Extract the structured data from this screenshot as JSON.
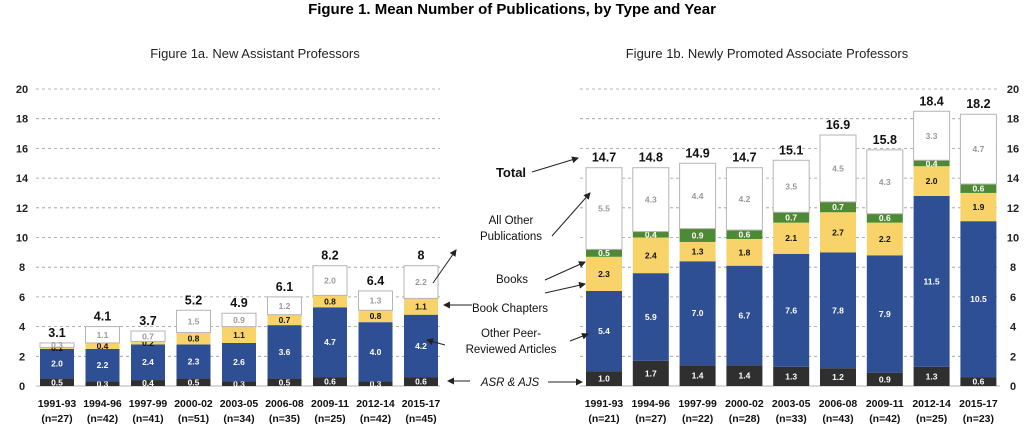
{
  "title": "Figure 1. Mean Number of Publications, by Type and Year",
  "colors": {
    "asr_ajs": "#2f2f2f",
    "peer_reviewed": "#2f4f94",
    "book_chapters": "#f7d36a",
    "books": "#4e8a35",
    "other": "#ffffff",
    "other_stroke": "#b5b5b5",
    "grid": "#9a9a9a"
  },
  "legend": {
    "total": "Total",
    "other": [
      "All Other",
      "Publications"
    ],
    "books": "Books",
    "book_chapters": "Book Chapters",
    "peer_reviewed": [
      "Other Peer-",
      "Reviewed Articles"
    ],
    "asr_ajs": "ASR & AJS"
  },
  "chart_data": [
    {
      "type": "bar",
      "stacked": true,
      "title": "Figure 1a. New Assistant Professors",
      "categories": [
        "1991-93",
        "1994-96",
        "1997-99",
        "2000-02",
        "2003-05",
        "2006-08",
        "2009-11",
        "2012-14",
        "2015-17"
      ],
      "n_labels": [
        "(n=27)",
        "(n=42)",
        "(n=41)",
        "(n=51)",
        "(n=34)",
        "(n=35)",
        "(n=25)",
        "(n=42)",
        "(n=45)"
      ],
      "series": [
        {
          "name": "ASR & AJS",
          "key": "asr_ajs",
          "values": [
            0.5,
            0.3,
            0.4,
            0.5,
            0.3,
            0.5,
            0.6,
            0.3,
            0.6
          ]
        },
        {
          "name": "Other Peer-Reviewed Articles",
          "key": "peer_reviewed",
          "values": [
            2.0,
            2.2,
            2.4,
            2.3,
            2.6,
            3.6,
            4.7,
            4.0,
            4.2
          ]
        },
        {
          "name": "Book Chapters",
          "key": "book_chapters",
          "values": [
            0.1,
            0.4,
            0.2,
            0.8,
            1.1,
            0.7,
            0.8,
            0.8,
            1.1
          ]
        },
        {
          "name": "Books",
          "key": "books",
          "values": [
            0.0,
            0.0,
            0.0,
            0.0,
            0.0,
            0.0,
            0.0,
            0.0,
            0.0
          ]
        },
        {
          "name": "All Other Publications",
          "key": "other",
          "values": [
            0.3,
            1.1,
            0.7,
            1.5,
            0.9,
            1.2,
            2.0,
            1.3,
            2.2
          ]
        }
      ],
      "totals": [
        3.1,
        4.1,
        3.7,
        5.2,
        4.9,
        6.1,
        8.2,
        6.4,
        8.0
      ],
      "ylim": [
        0,
        20
      ],
      "yticks": [
        0,
        2,
        4,
        6,
        8,
        10,
        12,
        14,
        16,
        18,
        20
      ],
      "grid": true
    },
    {
      "type": "bar",
      "stacked": true,
      "title": "Figure 1b. Newly Promoted Associate Professors",
      "categories": [
        "1991-93",
        "1994-96",
        "1997-99",
        "2000-02",
        "2003-05",
        "2006-08",
        "2009-11",
        "2012-14",
        "2015-17"
      ],
      "n_labels": [
        "(n=21)",
        "(n=27)",
        "(n=22)",
        "(n=28)",
        "(n=33)",
        "(n=43)",
        "(n=42)",
        "(n=25)",
        "(n=23)"
      ],
      "series": [
        {
          "name": "ASR & AJS",
          "key": "asr_ajs",
          "values": [
            1.0,
            1.7,
            1.4,
            1.4,
            1.3,
            1.2,
            0.9,
            1.3,
            0.6
          ]
        },
        {
          "name": "Other Peer-Reviewed Articles",
          "key": "peer_reviewed",
          "values": [
            5.4,
            5.9,
            7.0,
            6.7,
            7.6,
            7.8,
            7.9,
            11.5,
            10.5
          ]
        },
        {
          "name": "Book Chapters",
          "key": "book_chapters",
          "values": [
            2.3,
            2.4,
            1.3,
            1.8,
            2.1,
            2.7,
            2.2,
            2.0,
            1.9
          ]
        },
        {
          "name": "Books",
          "key": "books",
          "values": [
            0.5,
            0.4,
            0.9,
            0.6,
            0.7,
            0.7,
            0.6,
            0.4,
            0.6
          ]
        },
        {
          "name": "All Other Publications",
          "key": "other",
          "values": [
            5.5,
            4.3,
            4.4,
            4.2,
            3.5,
            4.5,
            4.3,
            3.3,
            4.7
          ]
        }
      ],
      "totals": [
        14.7,
        14.8,
        14.9,
        14.7,
        15.1,
        16.9,
        15.8,
        18.4,
        18.2
      ],
      "ylim": [
        0,
        20
      ],
      "yticks": [
        0,
        2,
        4,
        6,
        8,
        10,
        12,
        14,
        16,
        18,
        20
      ],
      "grid": true
    }
  ]
}
